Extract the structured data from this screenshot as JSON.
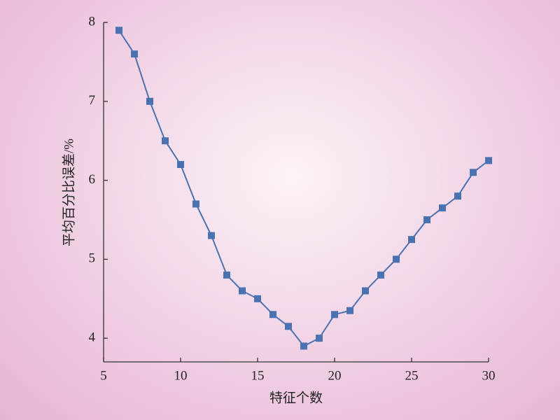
{
  "chart_data": {
    "type": "line",
    "x": [
      6,
      7,
      8,
      9,
      10,
      11,
      12,
      13,
      14,
      15,
      16,
      17,
      18,
      19,
      20,
      21,
      22,
      23,
      24,
      25,
      26,
      27,
      28,
      29,
      30
    ],
    "values": [
      7.9,
      7.6,
      7.0,
      6.5,
      6.2,
      5.7,
      5.3,
      4.8,
      4.6,
      4.5,
      4.3,
      4.15,
      3.9,
      4.0,
      4.3,
      4.35,
      4.6,
      4.8,
      5.0,
      5.25,
      5.5,
      5.65,
      5.8,
      6.1,
      6.25
    ],
    "color": "#4a72b0",
    "xlabel": "特征个数",
    "ylabel": "平均百分比误差/%",
    "xlim": [
      5,
      30
    ],
    "xticks": [
      5,
      10,
      15,
      20,
      25,
      30
    ],
    "ylim": [
      3.7,
      8
    ],
    "yticks": [
      4,
      5,
      6,
      7,
      8
    ],
    "grid": false
  }
}
